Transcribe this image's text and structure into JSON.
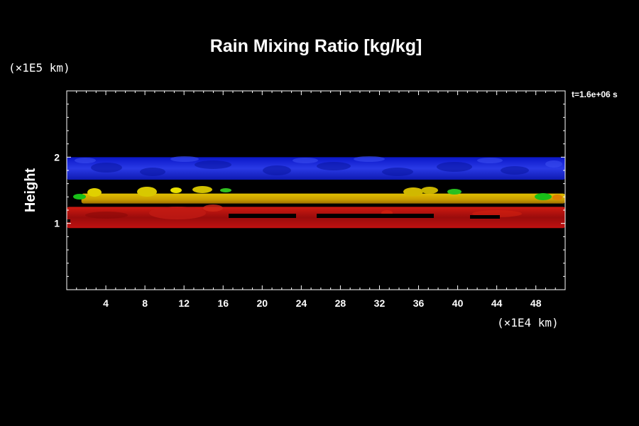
{
  "chart_data": {
    "type": "heatmap",
    "title": "Rain Mixing Ratio [kg/kg]",
    "ylabel": "Height",
    "xunit": "(×1E4 km)",
    "yunit": "(×1E5 km)",
    "time_label": "t=1.6e+06 s",
    "xlim": [
      0,
      51
    ],
    "ylim": [
      0,
      3
    ],
    "xticks": [
      4,
      8,
      12,
      16,
      20,
      24,
      28,
      32,
      36,
      40,
      44,
      48
    ],
    "yticks": [
      1,
      2
    ],
    "bands": [
      {
        "name": "upper",
        "color": "#1626d8",
        "x": [
          0,
          51
        ],
        "y": [
          1.66,
          2.0
        ]
      },
      {
        "name": "middle",
        "color": "#c8a200",
        "x": [
          1.5,
          51
        ],
        "y": [
          1.3,
          1.45
        ]
      },
      {
        "name": "lower",
        "color": "#b80c0c",
        "x": [
          0,
          51
        ],
        "y": [
          0.93,
          1.25
        ]
      }
    ],
    "grid": false
  }
}
